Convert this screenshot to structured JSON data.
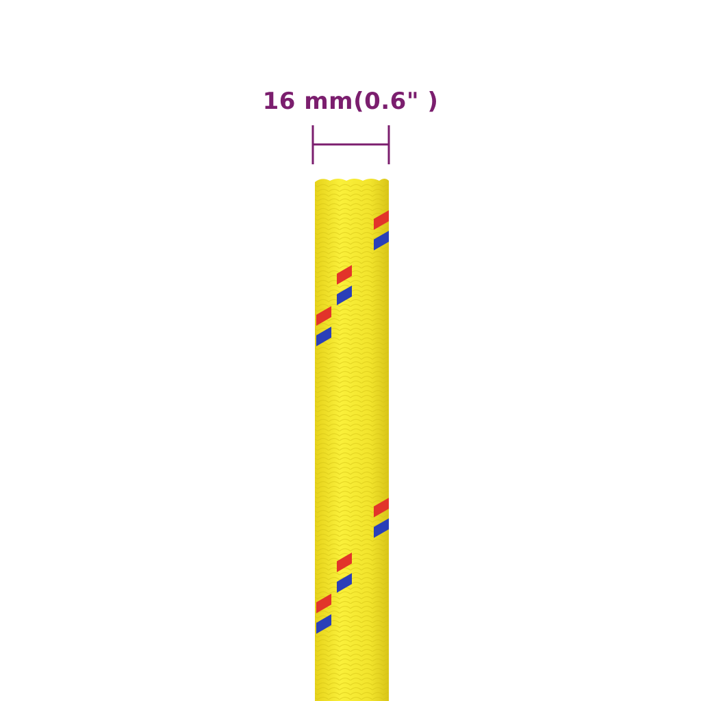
{
  "dimension": {
    "label": "16 mm(0.6\" )"
  },
  "colors": {
    "annotation": "#7b1e6e",
    "rope": "#f2e62c",
    "rope_shade": "#d8c81a",
    "fleck_red": "#e2342a",
    "fleck_blue": "#2a3fb8",
    "background": "#ffffff"
  }
}
